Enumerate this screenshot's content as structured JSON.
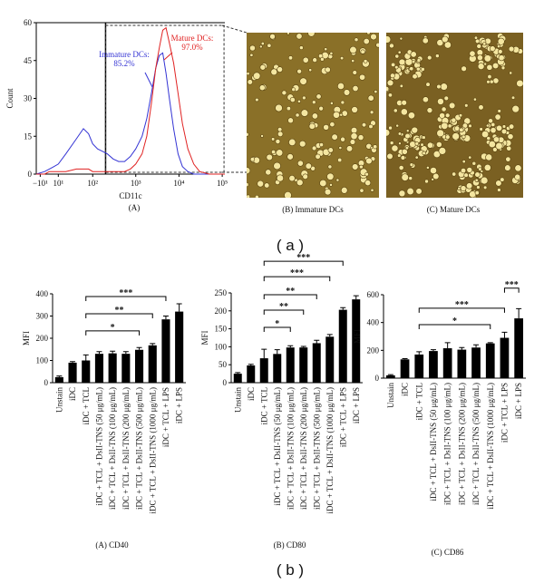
{
  "chart_data": [
    {
      "type": "line",
      "caption": "(A)",
      "xlabel": "CD11c",
      "ylabel": "Count",
      "xscale": "biex",
      "xlim": [
        -15,
        115000
      ],
      "ylim": [
        0,
        60
      ],
      "yticks": [
        0,
        15,
        30,
        45,
        60
      ],
      "xticks": [
        {
          "value": -10,
          "label": "−10¹"
        },
        {
          "value": 10,
          "label": "10¹"
        },
        {
          "value": 100,
          "label": "10²"
        },
        {
          "value": 1000,
          "label": "10³"
        },
        {
          "value": 10000,
          "label": "10⁴"
        },
        {
          "value": 100000,
          "label": "10⁵"
        }
      ],
      "gate": [
        200,
        110000
      ],
      "x": [
        -15,
        -5,
        0,
        5,
        10,
        20,
        40,
        60,
        80,
        100,
        130,
        170,
        220,
        300,
        400,
        550,
        750,
        1000,
        1400,
        1800,
        2300,
        2900,
        3500,
        4200,
        5000,
        6000,
        7500,
        9500,
        12000,
        16000,
        22000,
        30000,
        50000,
        115000
      ],
      "series": [
        {
          "name": "Immature DCs",
          "color": "#3434d4",
          "values": [
            0,
            1,
            2,
            3,
            4,
            8,
            14,
            18,
            16,
            12,
            10,
            9,
            8,
            6,
            5,
            5,
            7,
            10,
            15,
            22,
            32,
            42,
            47,
            48,
            40,
            30,
            18,
            8,
            3,
            1,
            0,
            0,
            0,
            0
          ]
        },
        {
          "name": "Mature DCs",
          "color": "#e02222",
          "values": [
            0,
            0,
            1,
            1,
            1,
            1,
            2,
            2,
            2,
            1,
            1,
            1,
            1,
            1,
            1,
            1,
            2,
            4,
            8,
            15,
            28,
            42,
            50,
            57,
            58,
            52,
            44,
            32,
            20,
            10,
            4,
            1,
            0,
            0
          ]
        }
      ],
      "annotations": [
        {
          "lines": [
            "Immature DCs:",
            "85.2%"
          ],
          "color": "#3434d4"
        },
        {
          "lines": [
            "Mature DCs:",
            "97.0%"
          ],
          "color": "#e02222"
        }
      ]
    },
    {
      "type": "bar",
      "caption": "(A) CD40",
      "ylabel": "MFI",
      "color": "#000000",
      "categories": [
        "Unstain",
        "iDC",
        "iDC + TCL",
        "iDC + TCL + DsII-TNS (50 μg/mL)",
        "iDC + TCL + DsII-TNS (100 μg/mL)",
        "iDC + TCL + DsII-TNS (200 μg/mL)",
        "iDC + TCL + DsII-TNS (500 μg/mL)",
        "iDC + TCL + DsII-TNS (1000 μg/mL)",
        "iDC + TCL + LPS",
        "iDC + LPS"
      ],
      "values": [
        25,
        90,
        100,
        130,
        132,
        130,
        148,
        168,
        285,
        320
      ],
      "errors": [
        5,
        5,
        25,
        10,
        10,
        10,
        10,
        8,
        15,
        35
      ],
      "ylim": [
        0,
        400
      ],
      "yticks": [
        0,
        100,
        200,
        300,
        400
      ],
      "brackets": [
        {
          "from": 2,
          "to": 6,
          "y": 233,
          "label": "*"
        },
        {
          "from": 2,
          "to": 7,
          "y": 310,
          "label": "**"
        },
        {
          "from": 2,
          "to": 8,
          "y": 388,
          "label": "***"
        }
      ]
    },
    {
      "type": "bar",
      "caption": "(B) CD80",
      "ylabel": "MFI",
      "color": "#000000",
      "categories": [
        "Unstain",
        "iDC",
        "iDC + TCL",
        "iDC + TCL + DsII-TNS (50 μg/mL)",
        "iDC + TCL + DsII-TNS (100 μg/mL)",
        "iDC + TCL + DsII-TNS (200 μg/mL)",
        "iDC + TCL + DsII-TNS (500 μg/mL)",
        "iDC + TCL + DsII-TNS (1000 μg/mL)",
        "iDC + TCL + LPS",
        "iDC + LPS"
      ],
      "values": [
        25,
        48,
        68,
        80,
        98,
        98,
        110,
        128,
        203,
        232
      ],
      "errors": [
        3,
        3,
        25,
        12,
        5,
        3,
        8,
        6,
        6,
        10
      ],
      "ylim": [
        0,
        250
      ],
      "yticks": [
        0,
        50,
        100,
        150,
        200,
        250
      ],
      "brackets": [
        {
          "from": 2,
          "to": 4,
          "y": 154,
          "label": "*"
        },
        {
          "from": 2,
          "to": 5,
          "y": 202,
          "label": "**"
        },
        {
          "from": 2,
          "to": 6,
          "y": 245,
          "label": "**"
        },
        {
          "from": 2,
          "to": 7,
          "y": 295,
          "label": "***"
        },
        {
          "from": 2,
          "to": 8,
          "y": 338,
          "label": "***"
        }
      ]
    },
    {
      "type": "bar",
      "caption": "(C) CD86",
      "ylabel": "MFI",
      "color": "#000000",
      "categories": [
        "Unstain",
        "iDC",
        "iDC + TCL",
        "iDC + TCL + DsII-TNS (50 μg/mL)",
        "iDC + TCL + DsII-TNS (100 μg/mL)",
        "iDC + TCL + DsII-TNS (200 μg/mL)",
        "iDC + TCL + DsII-TNS (500 μg/mL)",
        "iDC + TCL + DsII-TNS (1000 μg/mL)",
        "iDC + TCL + LPS",
        "iDC + LPS"
      ],
      "values": [
        20,
        135,
        170,
        195,
        215,
        205,
        220,
        250,
        290,
        430
      ],
      "errors": [
        5,
        5,
        20,
        10,
        40,
        15,
        20,
        5,
        40,
        70
      ],
      "ylim": [
        0,
        600
      ],
      "yticks": [
        0,
        200,
        400,
        600
      ],
      "brackets": [
        {
          "from": 2,
          "to": 7,
          "y": 385,
          "label": "*"
        },
        {
          "from": 2,
          "to": 8,
          "y": 503,
          "label": "***"
        },
        {
          "from": 8,
          "to": 9,
          "y": 647,
          "label": "***"
        }
      ]
    }
  ],
  "labels": {
    "photo_b": "(B) Immature DCs",
    "photo_c": "(C) Mature DCs",
    "panel_a": "( a )",
    "panel_b": "( b )"
  }
}
